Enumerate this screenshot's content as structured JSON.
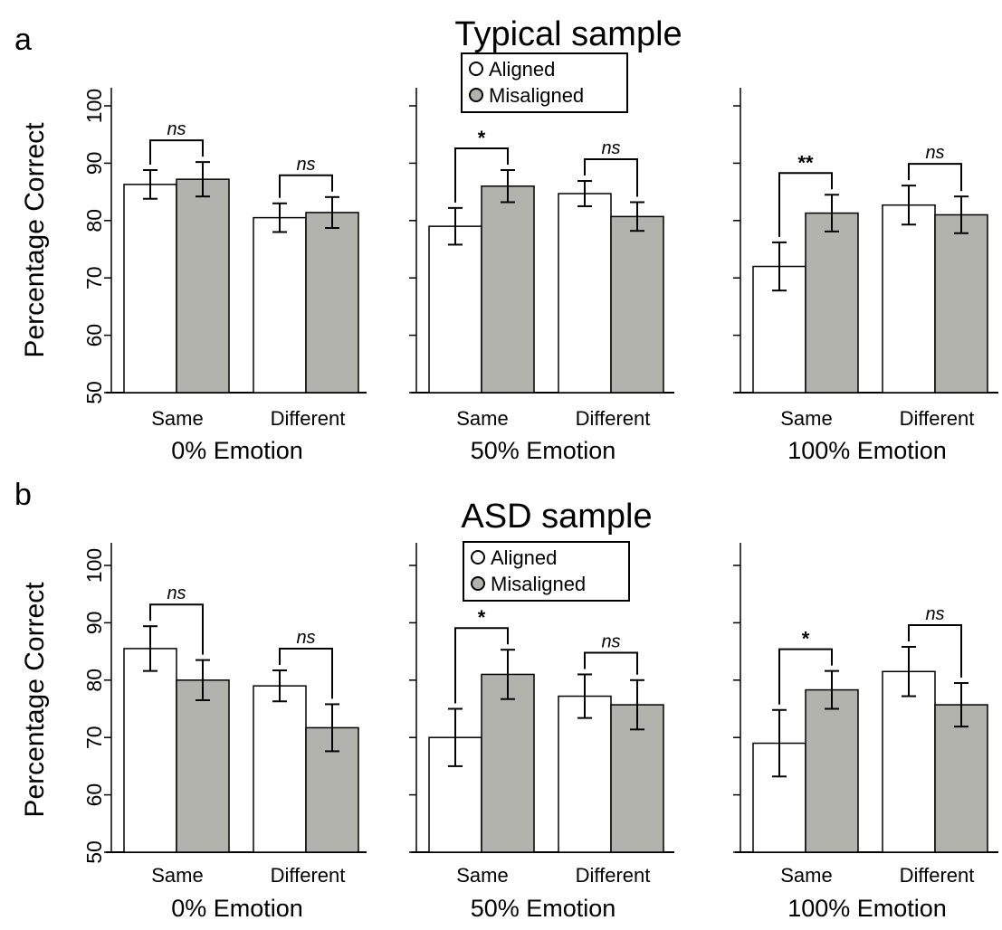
{
  "colors": {
    "aligned": "#ffffff",
    "misaligned": "#b3b3ae",
    "stroke": "#000000"
  },
  "legend": {
    "aligned_label": "Aligned",
    "misaligned_label": "Misaligned"
  },
  "chart_data": [
    {
      "type": "bar",
      "panel": "a",
      "title": "Typical sample",
      "ylabel": "Percentage Correct",
      "ylim": [
        50,
        100
      ],
      "yticks": [
        50,
        60,
        70,
        80,
        90,
        100
      ],
      "legend_in_subplot": 1,
      "subplots": [
        {
          "xlabel": "0% Emotion",
          "categories": [
            "Same",
            "Different"
          ],
          "series": [
            {
              "name": "Aligned",
              "values": [
                86.3,
                80.5
              ],
              "errors": [
                2.5,
                2.5
              ]
            },
            {
              "name": "Misaligned",
              "values": [
                87.2,
                81.4
              ],
              "errors": [
                3.0,
                2.7
              ]
            }
          ],
          "significance": [
            "ns",
            "ns"
          ]
        },
        {
          "xlabel": "50% Emotion",
          "categories": [
            "Same",
            "Different"
          ],
          "series": [
            {
              "name": "Aligned",
              "values": [
                79.0,
                84.7
              ],
              "errors": [
                3.2,
                2.2
              ]
            },
            {
              "name": "Misaligned",
              "values": [
                86.0,
                80.7
              ],
              "errors": [
                2.8,
                2.5
              ]
            }
          ],
          "significance": [
            "*",
            "ns"
          ]
        },
        {
          "xlabel": "100% Emotion",
          "categories": [
            "Same",
            "Different"
          ],
          "series": [
            {
              "name": "Aligned",
              "values": [
                72.0,
                82.7
              ],
              "errors": [
                4.2,
                3.4
              ]
            },
            {
              "name": "Misaligned",
              "values": [
                81.3,
                81.0
              ],
              "errors": [
                3.2,
                3.2
              ]
            }
          ],
          "significance": [
            "**",
            "ns"
          ]
        }
      ]
    },
    {
      "type": "bar",
      "panel": "b",
      "title": "ASD sample",
      "ylabel": "Percentage Correct",
      "ylim": [
        50,
        100
      ],
      "yticks": [
        50,
        60,
        70,
        80,
        90,
        100
      ],
      "legend_in_subplot": 1,
      "subplots": [
        {
          "xlabel": "0% Emotion",
          "categories": [
            "Same",
            "Different"
          ],
          "series": [
            {
              "name": "Aligned",
              "values": [
                85.5,
                79.0
              ],
              "errors": [
                3.9,
                2.7
              ]
            },
            {
              "name": "Misaligned",
              "values": [
                80.0,
                71.7
              ],
              "errors": [
                3.5,
                4.1
              ]
            }
          ],
          "significance": [
            "ns",
            "ns"
          ]
        },
        {
          "xlabel": "50% Emotion",
          "categories": [
            "Same",
            "Different"
          ],
          "series": [
            {
              "name": "Aligned",
              "values": [
                70.0,
                77.2
              ],
              "errors": [
                5.0,
                3.8
              ]
            },
            {
              "name": "Misaligned",
              "values": [
                81.0,
                75.7
              ],
              "errors": [
                4.3,
                4.3
              ]
            }
          ],
          "significance": [
            "*",
            "ns"
          ]
        },
        {
          "xlabel": "100% Emotion",
          "categories": [
            "Same",
            "Different"
          ],
          "series": [
            {
              "name": "Aligned",
              "values": [
                69.0,
                81.5
              ],
              "errors": [
                5.8,
                4.3
              ]
            },
            {
              "name": "Misaligned",
              "values": [
                78.3,
                75.7
              ],
              "errors": [
                3.3,
                3.8
              ]
            }
          ],
          "significance": [
            "*",
            "ns"
          ]
        }
      ]
    }
  ]
}
